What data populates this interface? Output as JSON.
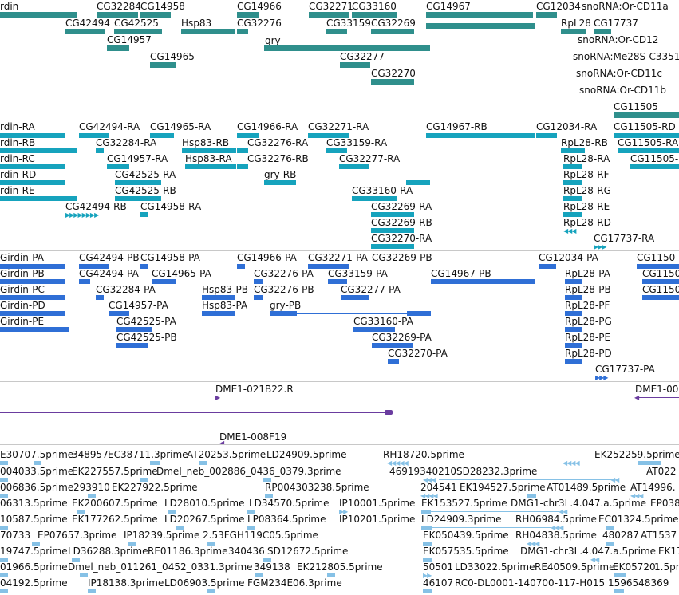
{
  "tracks": {
    "genes": {
      "labels": [
        "rdin",
        "CG32284",
        "CG14958",
        "CG14966",
        "CG32271",
        "CG33160",
        "CG14967",
        "CG12034",
        "snoRNA:Or-CD11a",
        "CG42494",
        "CG42525",
        "Hsp83",
        "CG32276",
        "CG33159",
        "CG32269",
        "RpL28",
        "CG17737",
        "CG14957",
        "snoRNA:Or-CD12",
        "gry",
        "CG14965",
        "CG32277",
        "snoRNA:Me28S-C3351",
        "snoRNA:Or-CD11c",
        "CG32270",
        "snoRNA:Or-CD11b",
        "CG11505"
      ]
    },
    "transcripts": {
      "labels": [
        "rdin-RA",
        "CG42494-RA",
        "CG14965-RA",
        "CG14966-RA",
        "CG32271-RA",
        "CG14967-RB",
        "CG12034-RA",
        "CG11505-RD",
        "rdin-RB",
        "CG32284-RA",
        "Hsp83-RB",
        "CG32276-RA",
        "CG33159-RA",
        "RpL28-RB",
        "CG11505-RA",
        "rdin-RC",
        "CG14957-RA",
        "Hsp83-RA",
        "CG32276-RB",
        "CG32277-RA",
        "RpL28-RA",
        "CG11505-",
        "rdin-RD",
        "CG42525-RA",
        "gry-RB",
        "RpL28-RF",
        "rdin-RE",
        "CG42525-RB",
        "CG33160-RA",
        "RpL28-RG",
        "CG42494-RB",
        "CG14958-RA",
        "CG32269-RA",
        "RpL28-RE",
        "CG32269-RB",
        "RpL28-RD",
        "CG32270-RA",
        "CG17737-RA"
      ]
    },
    "peptides": {
      "labels": [
        "Girdin-PA",
        "CG42494-PB",
        "CG14958-PA",
        "CG14966-PA",
        "CG32271-PA",
        "CG32269-PB",
        "CG12034-PA",
        "CG1150",
        "Girdin-PB",
        "CG42494-PA",
        "CG14965-PA",
        "CG32276-PA",
        "CG33159-PA",
        "CG14967-PB",
        "RpL28-PA",
        "CG1150",
        "Girdin-PC",
        "CG32284-PA",
        "Hsp83-PB",
        "CG32276-PB",
        "CG32277-PA",
        "RpL28-PB",
        "CG1150",
        "Girdin-PD",
        "CG14957-PA",
        "Hsp83-PA",
        "gry-PB",
        "RpL28-PF",
        "Girdin-PE",
        "CG42525-PA",
        "CG33160-PA",
        "RpL28-PG",
        "CG42525-PB",
        "CG32269-PA",
        "RpL28-PE",
        "CG32270-PA",
        "RpL28-PD",
        "CG17737-PA"
      ]
    },
    "clones": {
      "labels": [
        "DME1-021B22.R",
        "DME1-00",
        "DME1-008F19"
      ]
    },
    "ests": {
      "labels": [
        "E30707.5prime",
        "348957",
        "EC38711.3prime",
        "AT20253.5prime",
        "LD24909.5prime",
        "RH18720.5prime",
        "EK252259.5prime",
        "004033.5prime",
        "EK227557.5prime",
        "Dmel_neb_002886_0436_0379.3prime",
        "46919340210SD28232.3prime",
        "AT022",
        "006836.5prime",
        "293910",
        "EK227922.5prime",
        "RP004303238.5prime",
        "204541",
        "EK194527.5prime",
        "AT01489.5prime",
        "AT14996.",
        "06313.5prime",
        "EK200607.5prime",
        "LD28010.5prime",
        "LD34570.5prime",
        "IP10001.5prime",
        "EK153527.5prime",
        "DMG1-chr3L.4.047.a.5prime",
        "EP038",
        "10587.5prime",
        "EK177262.5prime",
        "LD20267.5prime",
        "LP08364.5prime",
        "IP10201.5prime",
        "LD24909.3prime",
        "RH06984.5prime",
        "EC01324.5prime",
        "70733",
        "EP07657.3prime",
        "IP18239.5prime",
        "2.53FGH119C05.5prime",
        "EK050439.5prime",
        "RH04838.5prime",
        "480287",
        "AT1537",
        "19747.5prime",
        "LD36288.3prime",
        "RE01186.3prime",
        "340436",
        "SD12672.5prime",
        "EK057535.5prime",
        "DMG1-chr3L.4.047.a.5prime",
        "EK17",
        "01966.5prime",
        "Dmel_neb_011261_0452_0331.3prime",
        "349138",
        "EK212805.5prime",
        "50501",
        "LD33022.5prime",
        "RE40509.5prime",
        "EK05720",
        "1.5prime",
        "04192.5prime",
        "IP18138.3prime",
        "LD06903.5prime",
        "FGM234E06.3prime",
        "46107",
        "RC0-DL0001-140700-117-H015",
        "1596548369"
      ]
    }
  }
}
